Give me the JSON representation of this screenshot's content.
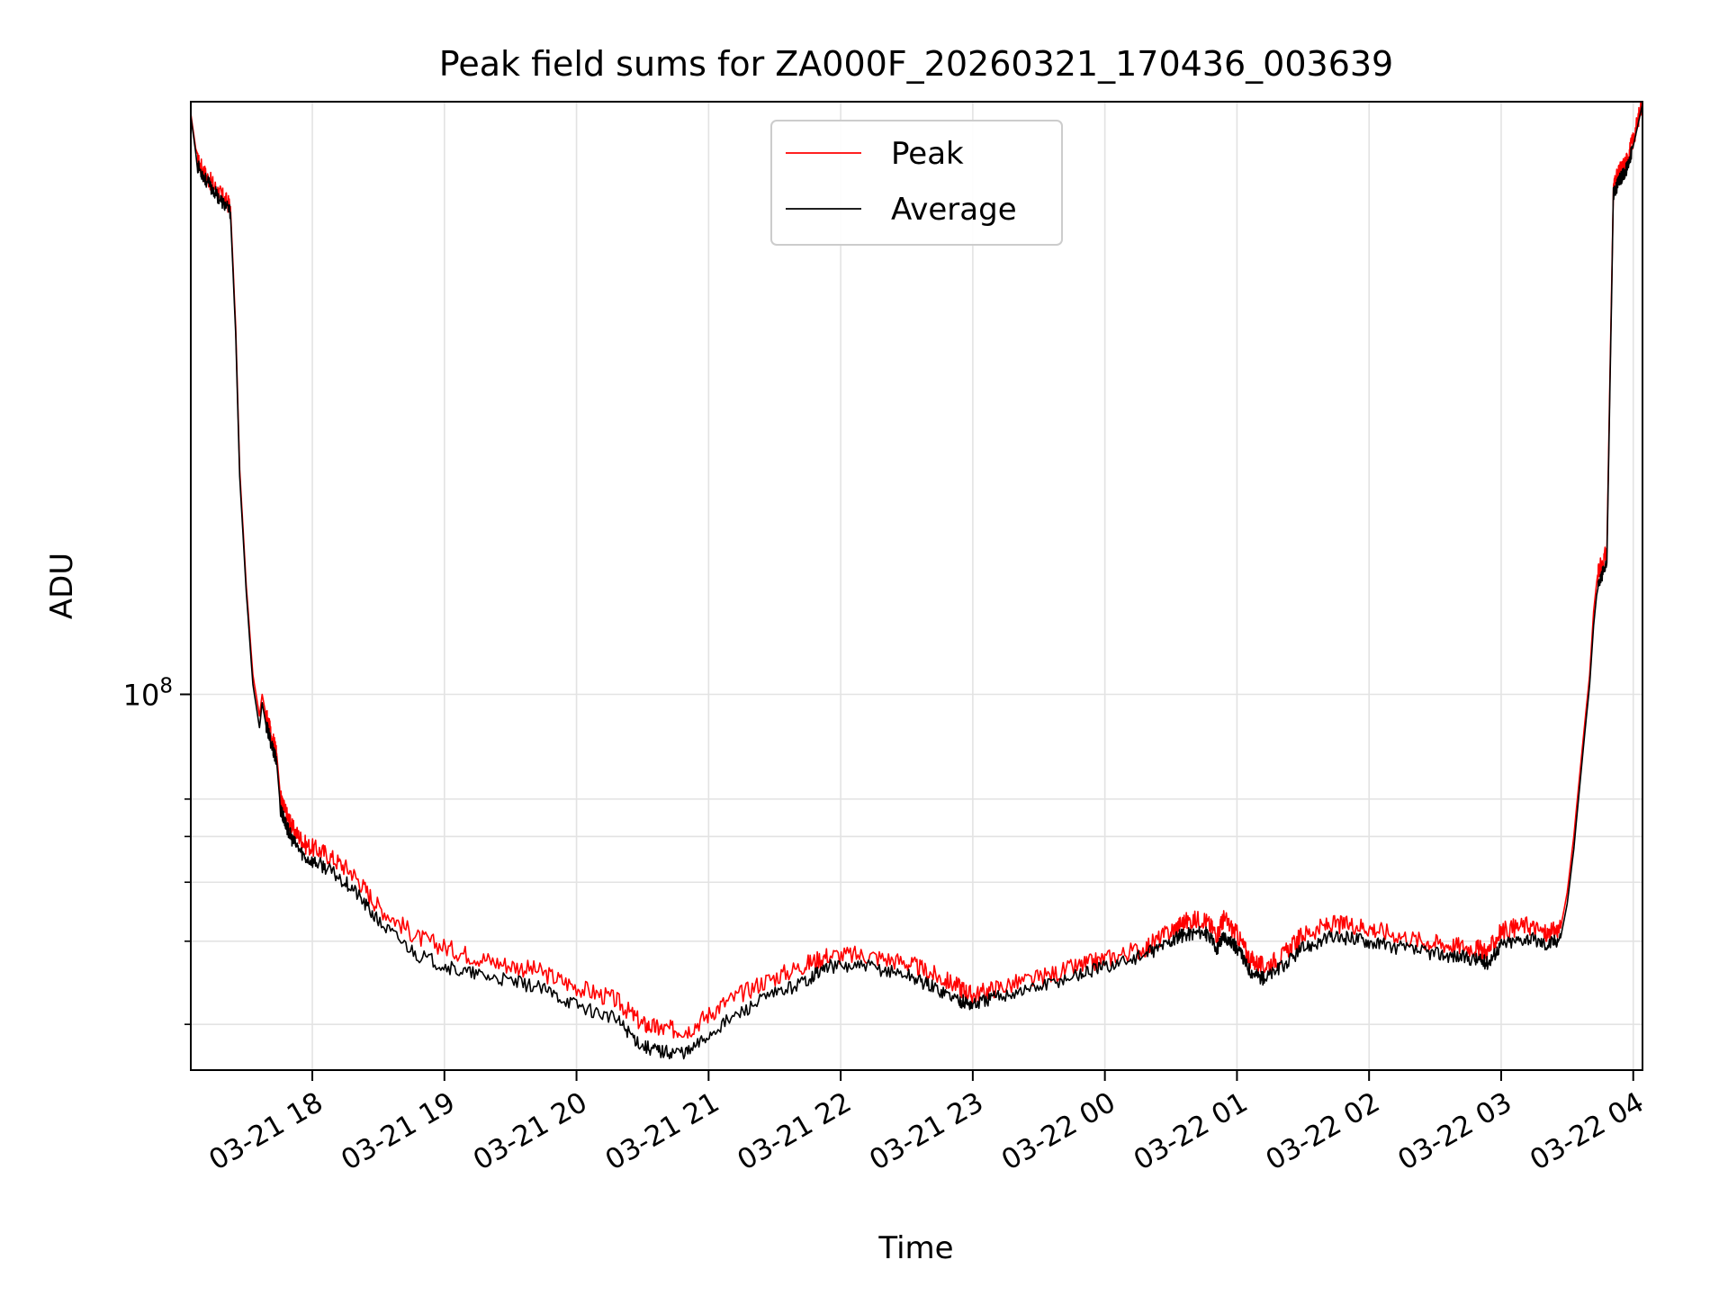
{
  "chart_data": {
    "type": "line",
    "title": "Peak field sums for ZA000F_20260321_170436_003639",
    "xlabel": "Time",
    "ylabel": "ADU",
    "yscale": "log",
    "grid": true,
    "legend_position": "top-center",
    "xlim_hours": [
      17.08,
      28.07
    ],
    "ylim": [
      16000000,
      1800000000
    ],
    "x_tick_labels": [
      "03-21 18",
      "03-21 19",
      "03-21 20",
      "03-21 21",
      "03-21 22",
      "03-21 23",
      "03-22 00",
      "03-22 01",
      "03-22 02",
      "03-22 03",
      "03-22 04"
    ],
    "x_tick_hours": [
      18,
      19,
      20,
      21,
      22,
      23,
      24,
      25,
      26,
      27,
      28
    ],
    "y_major_tick": {
      "value": 100000000,
      "label_base": "10",
      "label_exp": "8"
    },
    "y_minor_ticks": [
      20000000,
      30000000,
      40000000,
      50000000,
      60000000
    ],
    "series": [
      {
        "name": "Peak",
        "color": "#ff0000",
        "x_hours": [
          17.08,
          17.13,
          17.2,
          17.3,
          17.38,
          17.42,
          17.45,
          17.5,
          17.55,
          17.6,
          17.62,
          17.65,
          17.7,
          17.73,
          17.76,
          17.8,
          17.85,
          17.95,
          18.1,
          18.3,
          18.5,
          18.8,
          19.1,
          19.4,
          19.7,
          20.0,
          20.3,
          20.5,
          20.65,
          20.85,
          21.1,
          21.4,
          21.7,
          21.9,
          22.2,
          22.5,
          22.7,
          22.9,
          23.0,
          23.2,
          23.5,
          23.8,
          24.0,
          24.3,
          24.5,
          24.6,
          24.75,
          24.85,
          24.9,
          25.0,
          25.1,
          25.2,
          25.35,
          25.5,
          25.7,
          25.9,
          26.1,
          26.4,
          26.6,
          26.8,
          26.9,
          27.0,
          27.2,
          27.35,
          27.45,
          27.5,
          27.55,
          27.62,
          27.67,
          27.7,
          27.73,
          27.8,
          27.85,
          27.9,
          27.95,
          28.0,
          28.07
        ],
        "y": [
          1700000000,
          1350000000,
          1250000000,
          1150000000,
          1080000000,
          600000000,
          300000000,
          170000000,
          110000000,
          90000000,
          100000000,
          90000000,
          80000000,
          75000000,
          60000000,
          56000000,
          52000000,
          48000000,
          46000000,
          42000000,
          35500000,
          30500000,
          28500000,
          27000000,
          26000000,
          24000000,
          22500000,
          20000000,
          19500000,
          19500000,
          22000000,
          24500000,
          26500000,
          28000000,
          28000000,
          27000000,
          25500000,
          24000000,
          23000000,
          24000000,
          25000000,
          26500000,
          27500000,
          29000000,
          31500000,
          33000000,
          33500000,
          31000000,
          33500000,
          31000000,
          27500000,
          26500000,
          28000000,
          31000000,
          32500000,
          32500000,
          31500000,
          30000000,
          29500000,
          29000000,
          28500000,
          31500000,
          32500000,
          31000000,
          32000000,
          38000000,
          50000000,
          80000000,
          110000000,
          150000000,
          180000000,
          200000000,
          1200000000,
          1280000000,
          1350000000,
          1500000000,
          1800000000
        ]
      },
      {
        "name": "Average",
        "color": "#000000",
        "x_hours": [
          17.08,
          17.13,
          17.2,
          17.3,
          17.38,
          17.42,
          17.45,
          17.5,
          17.55,
          17.6,
          17.62,
          17.65,
          17.7,
          17.73,
          17.76,
          17.8,
          17.85,
          17.95,
          18.1,
          18.3,
          18.5,
          18.8,
          19.1,
          19.4,
          19.7,
          20.0,
          20.3,
          20.5,
          20.65,
          20.85,
          21.1,
          21.4,
          21.7,
          21.9,
          22.2,
          22.5,
          22.7,
          22.9,
          23.0,
          23.2,
          23.5,
          23.8,
          24.0,
          24.3,
          24.5,
          24.6,
          24.75,
          24.85,
          24.9,
          25.0,
          25.1,
          25.2,
          25.35,
          25.5,
          25.7,
          25.9,
          26.1,
          26.4,
          26.6,
          26.8,
          26.9,
          27.0,
          27.2,
          27.35,
          27.45,
          27.5,
          27.55,
          27.62,
          27.67,
          27.7,
          27.73,
          27.8,
          27.85,
          27.9,
          27.95,
          28.0,
          28.07
        ],
        "y": [
          1680000000,
          1320000000,
          1220000000,
          1120000000,
          1050000000,
          580000000,
          290000000,
          165000000,
          105000000,
          85000000,
          96000000,
          86000000,
          77000000,
          72000000,
          57000000,
          53000000,
          49000000,
          45000000,
          43000000,
          39000000,
          33000000,
          28000000,
          26000000,
          25000000,
          24000000,
          22000000,
          20500000,
          18000000,
          17500000,
          17500000,
          20000000,
          22500000,
          24500000,
          26500000,
          26500000,
          25500000,
          24000000,
          22500000,
          22000000,
          23000000,
          24000000,
          25500000,
          26500000,
          28000000,
          30000000,
          31000000,
          31500000,
          29000000,
          31000000,
          29000000,
          26000000,
          25000000,
          26500000,
          29000000,
          30500000,
          30500000,
          29500000,
          28500000,
          28000000,
          27500000,
          27000000,
          29500000,
          30500000,
          29500000,
          30500000,
          36000000,
          47000000,
          76000000,
          105000000,
          140000000,
          170000000,
          190000000,
          1150000000,
          1230000000,
          1300000000,
          1450000000,
          1780000000
        ]
      }
    ]
  }
}
